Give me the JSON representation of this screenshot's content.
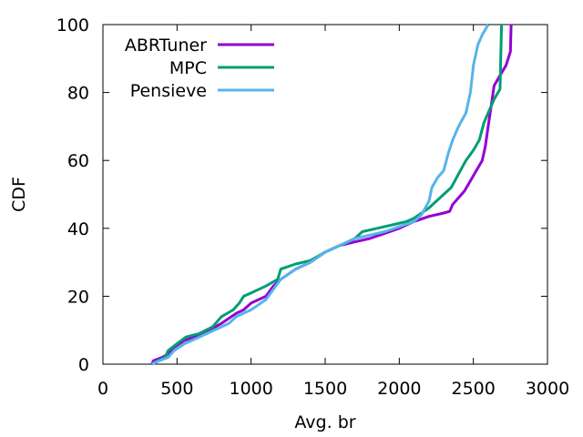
{
  "chart_data": {
    "type": "line",
    "xlabel": "Avg. br",
    "ylabel": "CDF",
    "xlim": [
      0,
      3000
    ],
    "ylim": [
      0,
      100
    ],
    "xticks": [
      0,
      500,
      1000,
      1500,
      2000,
      2500,
      3000
    ],
    "yticks": [
      0,
      20,
      40,
      60,
      80,
      100
    ],
    "grid": false,
    "legend_position": "top-left",
    "series": [
      {
        "name": "ABRTuner",
        "color": "#9400d3",
        "points": [
          [
            330,
            0
          ],
          [
            340,
            1
          ],
          [
            400,
            2
          ],
          [
            440,
            3
          ],
          [
            480,
            5
          ],
          [
            550,
            7
          ],
          [
            650,
            8.5
          ],
          [
            720,
            10
          ],
          [
            800,
            12
          ],
          [
            900,
            15
          ],
          [
            950,
            16
          ],
          [
            1000,
            18
          ],
          [
            1050,
            19
          ],
          [
            1100,
            20
          ],
          [
            1150,
            23
          ],
          [
            1200,
            25
          ],
          [
            1300,
            28
          ],
          [
            1400,
            30
          ],
          [
            1500,
            33
          ],
          [
            1600,
            35
          ],
          [
            1700,
            36
          ],
          [
            1800,
            37
          ],
          [
            1900,
            38.5
          ],
          [
            2000,
            40
          ],
          [
            2100,
            42
          ],
          [
            2200,
            43.5
          ],
          [
            2300,
            44.5
          ],
          [
            2340,
            45
          ],
          [
            2360,
            47
          ],
          [
            2400,
            49
          ],
          [
            2440,
            51
          ],
          [
            2480,
            54
          ],
          [
            2520,
            57
          ],
          [
            2560,
            60
          ],
          [
            2580,
            64
          ],
          [
            2600,
            70
          ],
          [
            2620,
            76
          ],
          [
            2640,
            82
          ],
          [
            2680,
            85
          ],
          [
            2720,
            88
          ],
          [
            2750,
            92
          ],
          [
            2755,
            100
          ]
        ]
      },
      {
        "name": "MPC",
        "color": "#009e73",
        "points": [
          [
            330,
            0
          ],
          [
            370,
            1
          ],
          [
            420,
            2
          ],
          [
            440,
            4
          ],
          [
            500,
            6
          ],
          [
            560,
            8
          ],
          [
            650,
            9
          ],
          [
            740,
            11
          ],
          [
            800,
            14
          ],
          [
            880,
            16
          ],
          [
            920,
            18
          ],
          [
            950,
            20
          ],
          [
            1000,
            21
          ],
          [
            1100,
            23
          ],
          [
            1180,
            25
          ],
          [
            1200,
            28
          ],
          [
            1300,
            29.5
          ],
          [
            1400,
            30.5
          ],
          [
            1500,
            33
          ],
          [
            1600,
            35
          ],
          [
            1700,
            37
          ],
          [
            1750,
            39
          ],
          [
            1850,
            40
          ],
          [
            1950,
            41
          ],
          [
            2050,
            42
          ],
          [
            2100,
            43
          ],
          [
            2200,
            46
          ],
          [
            2300,
            50
          ],
          [
            2350,
            52
          ],
          [
            2400,
            56
          ],
          [
            2450,
            60
          ],
          [
            2500,
            63
          ],
          [
            2540,
            66
          ],
          [
            2570,
            71
          ],
          [
            2600,
            74
          ],
          [
            2640,
            78
          ],
          [
            2680,
            81
          ],
          [
            2690,
            100
          ]
        ]
      },
      {
        "name": "Pensieve",
        "color": "#56b4e9",
        "points": [
          [
            330,
            0
          ],
          [
            380,
            1
          ],
          [
            440,
            2
          ],
          [
            480,
            4
          ],
          [
            550,
            6
          ],
          [
            650,
            8
          ],
          [
            750,
            10
          ],
          [
            850,
            12
          ],
          [
            900,
            14
          ],
          [
            1000,
            16
          ],
          [
            1100,
            19
          ],
          [
            1150,
            22
          ],
          [
            1200,
            25
          ],
          [
            1300,
            28
          ],
          [
            1400,
            30
          ],
          [
            1500,
            33
          ],
          [
            1600,
            35
          ],
          [
            1700,
            37
          ],
          [
            1800,
            38
          ],
          [
            1900,
            39
          ],
          [
            2000,
            40.5
          ],
          [
            2100,
            42
          ],
          [
            2150,
            44
          ],
          [
            2200,
            48
          ],
          [
            2220,
            52
          ],
          [
            2260,
            55
          ],
          [
            2300,
            57
          ],
          [
            2330,
            62
          ],
          [
            2360,
            66
          ],
          [
            2400,
            70
          ],
          [
            2450,
            74
          ],
          [
            2480,
            80
          ],
          [
            2500,
            88
          ],
          [
            2530,
            94
          ],
          [
            2560,
            97
          ],
          [
            2600,
            100
          ]
        ]
      }
    ]
  }
}
